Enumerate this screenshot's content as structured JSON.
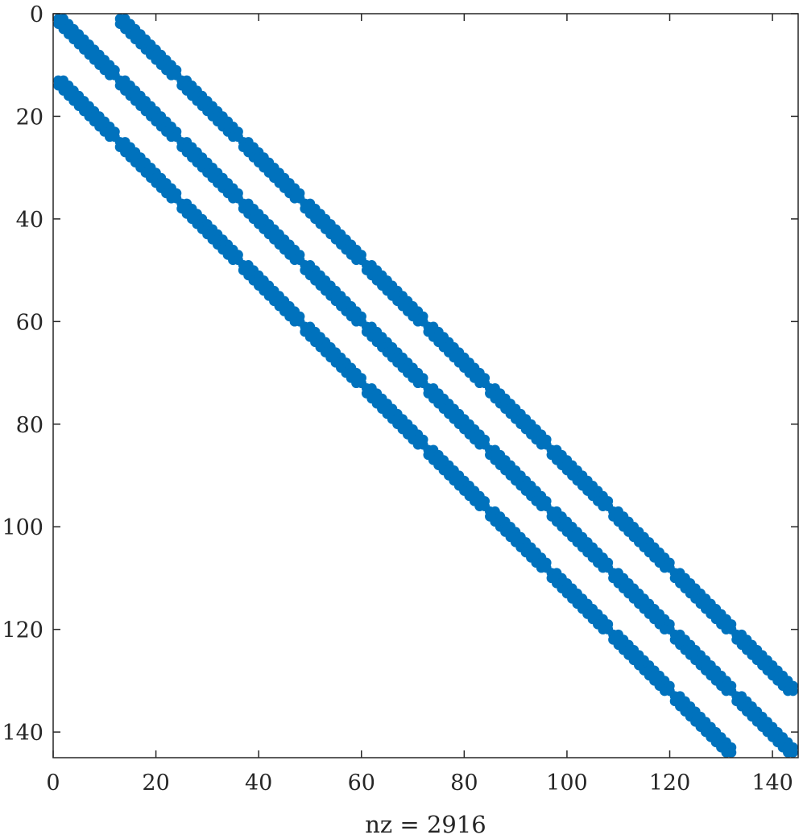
{
  "chart_data": {
    "type": "scatter",
    "title": "",
    "xlabel": "nz = 2916",
    "ylabel": "",
    "xlim": [
      0,
      145
    ],
    "ylim": [
      0,
      145
    ],
    "y_reversed": true,
    "x_ticks": [
      "0",
      "20",
      "40",
      "60",
      "80",
      "100",
      "120",
      "140"
    ],
    "y_ticks": [
      "0",
      "20",
      "40",
      "60",
      "80",
      "100",
      "120",
      "140"
    ],
    "grid": false,
    "marker_color": "#0072BD",
    "matrix": {
      "size": 144,
      "block_size": 12,
      "description_of_pattern": "block tridiagonal: 12x12 grid of blocks, each nonzero block is tridiagonal (bandwidth 1)",
      "nonzeros": 2916
    }
  }
}
